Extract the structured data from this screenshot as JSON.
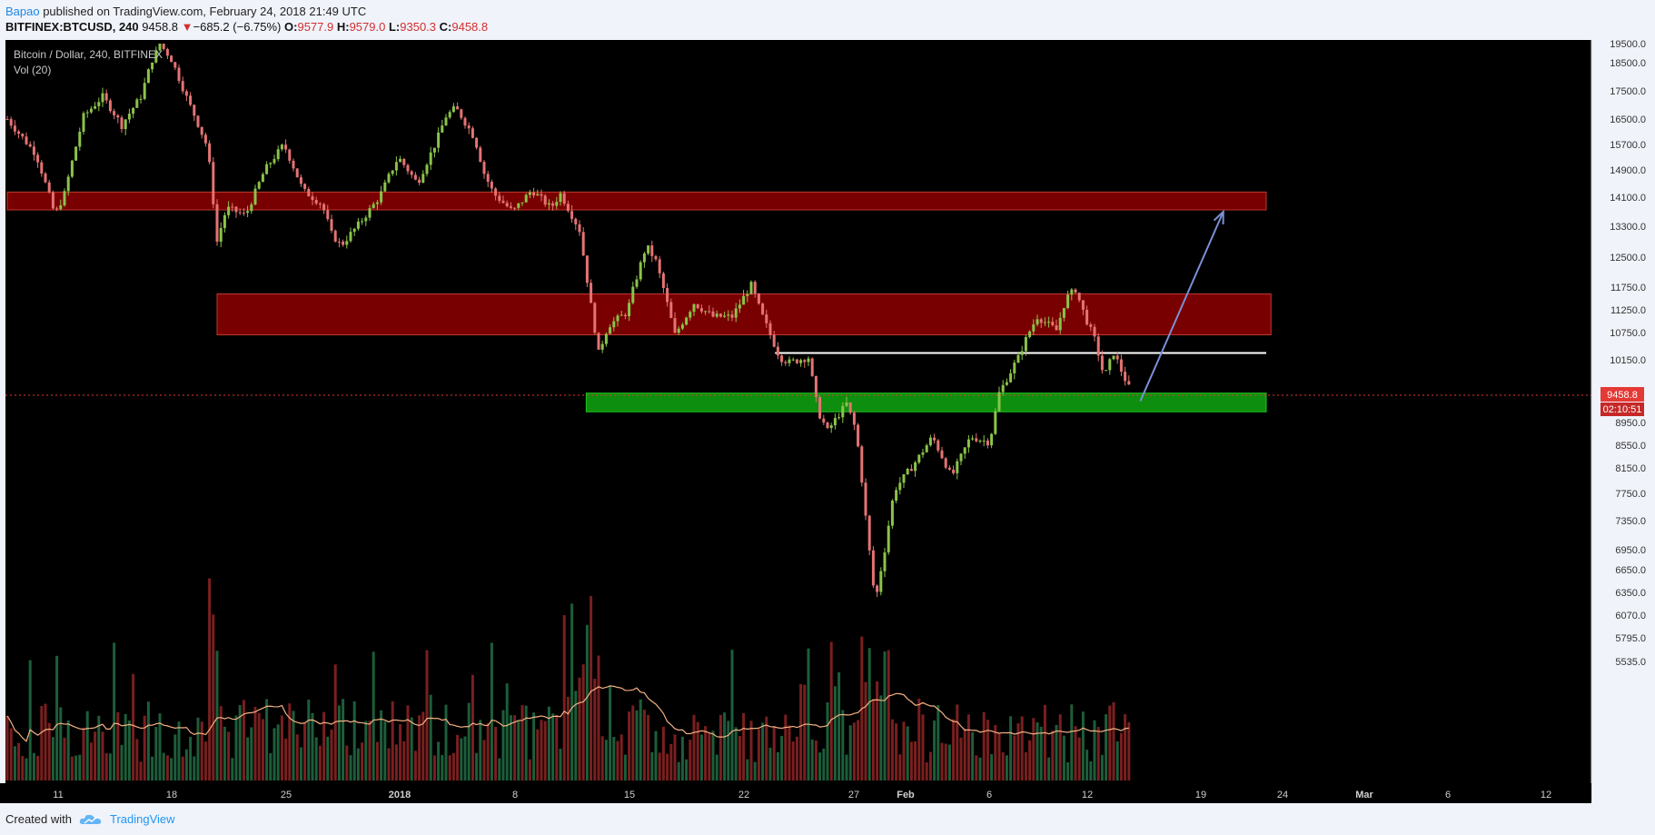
{
  "header": {
    "author": "Bapao",
    "published_text": " published on TradingView.com, February 24, 2018 21:49 UTC",
    "symbol": "BITFINEX:BTCUSD, 240",
    "last": "9458.8",
    "arrow": "▼",
    "change": "−685.2 (−6.75%)",
    "o_label": "O:",
    "o_value": "9577.9",
    "h_label": "H:",
    "h_value": "9579.0",
    "l_label": "L:",
    "l_value": "9350.3",
    "c_label": "C:",
    "c_value": "9458.8"
  },
  "legend": {
    "pair": "Bitcoin / Dollar, 240, BITFINEX",
    "volume": "Vol (20)"
  },
  "footer": {
    "created_with": "Created with",
    "brand": "TradingView",
    "brand_icon": "cloud-logo-icon"
  },
  "chart_data": {
    "type": "candlestick",
    "y_ticks": [
      "19500.0",
      "18500.0",
      "17500.0",
      "16500.0",
      "15700.0",
      "14900.0",
      "14100.0",
      "13300.0",
      "12500.0",
      "11750.0",
      "11250.0",
      "10750.0",
      "10150.0",
      "8950.0",
      "8550.0",
      "8150.0",
      "7750.0",
      "7350.0",
      "6950.0",
      "6650.0",
      "6350.0",
      "6070.0",
      "5795.0",
      "5535.0"
    ],
    "x_ticks": [
      "11",
      "18",
      "25",
      "2018",
      "8",
      "15",
      "22",
      "27",
      "Feb",
      "6",
      "12",
      "19",
      "24",
      "Mar",
      "6",
      "12"
    ],
    "last_price_label": "9458.8",
    "countdown_label": "02:10:51",
    "ylim": [
      5535,
      19500
    ],
    "price_path": [
      [
        0,
        16500
      ],
      [
        3,
        15400
      ],
      [
        5,
        13600
      ],
      [
        6,
        14200
      ],
      [
        8,
        16600
      ],
      [
        10,
        17300
      ],
      [
        12,
        16300
      ],
      [
        14,
        17300
      ],
      [
        16,
        19500
      ],
      [
        17,
        18800
      ],
      [
        19,
        17100
      ],
      [
        21,
        15600
      ],
      [
        22,
        12900
      ],
      [
        23,
        13800
      ],
      [
        25,
        13600
      ],
      [
        27,
        14900
      ],
      [
        29,
        15700
      ],
      [
        31,
        14300
      ],
      [
        33,
        13900
      ],
      [
        34,
        13100
      ],
      [
        35,
        12800
      ],
      [
        37,
        13400
      ],
      [
        39,
        14100
      ],
      [
        41,
        15300
      ],
      [
        43,
        14500
      ],
      [
        45,
        15800
      ],
      [
        46,
        16600
      ],
      [
        47,
        16900
      ],
      [
        49,
        15900
      ],
      [
        50,
        14800
      ],
      [
        51,
        14200
      ],
      [
        53,
        13700
      ],
      [
        55,
        14300
      ],
      [
        57,
        13800
      ],
      [
        58,
        14200
      ],
      [
        60,
        13200
      ],
      [
        61,
        11600
      ],
      [
        62,
        10300
      ],
      [
        63,
        10900
      ],
      [
        65,
        11200
      ],
      [
        67,
        12800
      ],
      [
        68,
        12400
      ],
      [
        70,
        10700
      ],
      [
        72,
        11400
      ],
      [
        74,
        11100
      ],
      [
        76,
        11100
      ],
      [
        78,
        11800
      ],
      [
        79,
        11200
      ],
      [
        80,
        10700
      ],
      [
        81,
        10200
      ],
      [
        82,
        10100
      ],
      [
        84,
        10200
      ],
      [
        85,
        9150
      ],
      [
        86,
        8800
      ],
      [
        88,
        9300
      ],
      [
        89,
        8800
      ],
      [
        90,
        7400
      ],
      [
        91,
        6200
      ],
      [
        92,
        6950
      ],
      [
        93,
        7800
      ],
      [
        95,
        8200
      ],
      [
        97,
        8700
      ],
      [
        99,
        8000
      ],
      [
        101,
        8700
      ],
      [
        103,
        8600
      ],
      [
        104,
        9500
      ],
      [
        106,
        10200
      ],
      [
        107,
        10700
      ],
      [
        108,
        11100
      ],
      [
        110,
        10800
      ],
      [
        111,
        11500
      ],
      [
        112,
        11700
      ],
      [
        113,
        11100
      ],
      [
        114,
        10600
      ],
      [
        115,
        9800
      ],
      [
        116,
        10300
      ],
      [
        117,
        9850
      ],
      [
        118,
        9450
      ]
    ],
    "zones": [
      {
        "type": "resistance",
        "color": "#800000",
        "top": 14250,
        "bottom": 13750,
        "x0": 0,
        "x1": 132
      },
      {
        "type": "resistance",
        "color": "#800000",
        "top": 11600,
        "bottom": 10700,
        "x0": 22,
        "x1": 132.5
      },
      {
        "type": "support",
        "color": "#0f9d0f",
        "top": 9500,
        "bottom": 9150,
        "x0": 60.7,
        "x1": 132
      },
      {
        "type": "level",
        "color": "#ffffff",
        "price": 10300,
        "x0": 80.5,
        "x1": 132
      }
    ],
    "arrow": {
      "from": [
        118.8,
        9350
      ],
      "to": [
        127.5,
        13700
      ],
      "color": "#7c8fd6"
    },
    "volume_note": "Volume bars with moving average Vol (20)"
  }
}
